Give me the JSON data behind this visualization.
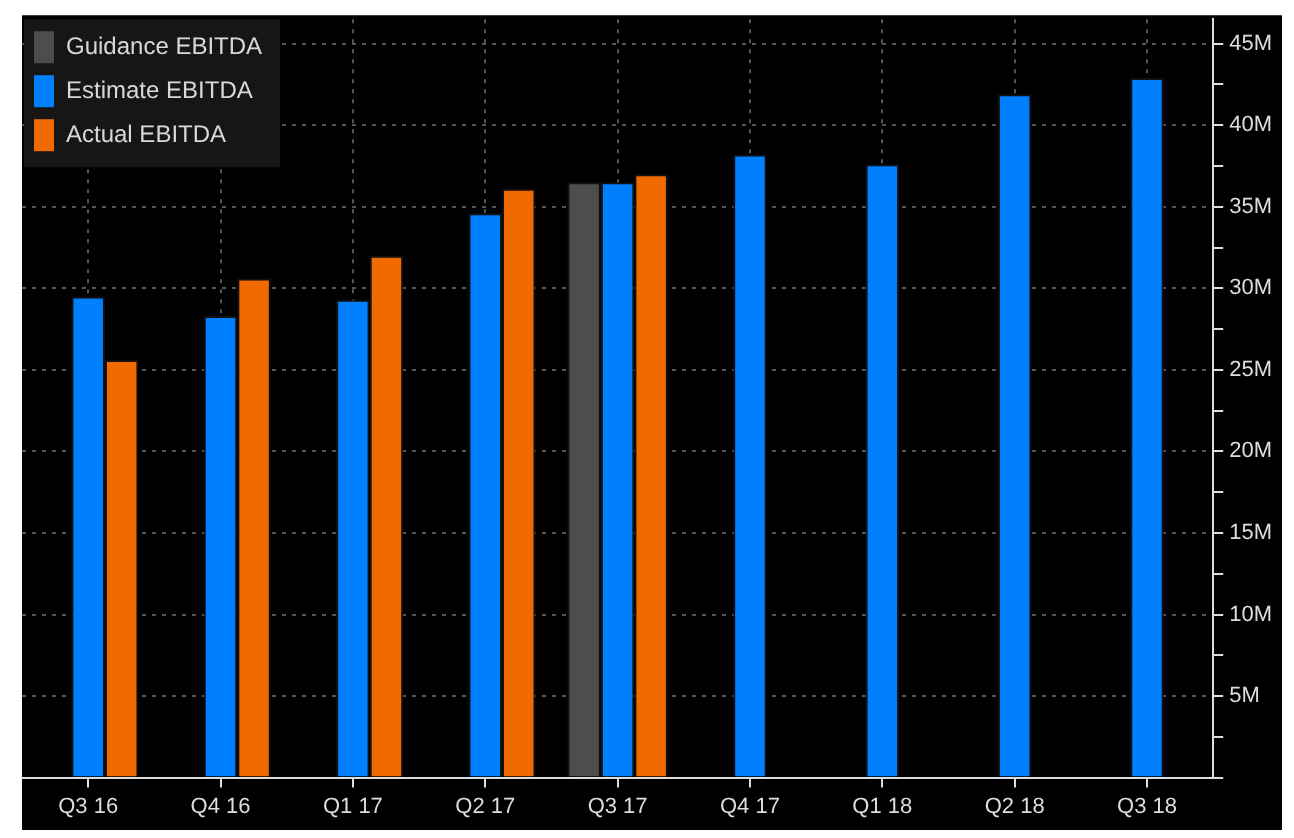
{
  "chart_data": {
    "type": "bar",
    "categories": [
      "Q3 16",
      "Q4 16",
      "Q1 17",
      "Q2 17",
      "Q3 17",
      "Q4 17",
      "Q1 18",
      "Q2 18",
      "Q3 18"
    ],
    "series": [
      {
        "name": "Guidance EBITDA",
        "color": "#4d4d4d",
        "values": [
          null,
          null,
          null,
          null,
          36.5,
          null,
          null,
          null,
          null
        ]
      },
      {
        "name": "Estimate EBITDA",
        "color": "#0080ff",
        "values": [
          29.5,
          28.3,
          29.3,
          34.6,
          36.5,
          38.2,
          37.6,
          41.9,
          42.9
        ]
      },
      {
        "name": "Actual EBITDA",
        "color": "#f06a00",
        "values": [
          25.6,
          30.6,
          32.0,
          36.1,
          37.0,
          null,
          null,
          null,
          null
        ]
      }
    ],
    "ylim": [
      0,
      46.5
    ],
    "yticks": [
      {
        "value": 0,
        "label": null
      },
      {
        "value": 2.5,
        "label": null
      },
      {
        "value": 5,
        "label": "5M"
      },
      {
        "value": 7.5,
        "label": null
      },
      {
        "value": 10,
        "label": "10M"
      },
      {
        "value": 12.5,
        "label": null
      },
      {
        "value": 15,
        "label": "15M"
      },
      {
        "value": 17.5,
        "label": null
      },
      {
        "value": 20,
        "label": "20M"
      },
      {
        "value": 22.5,
        "label": null
      },
      {
        "value": 25,
        "label": "25M"
      },
      {
        "value": 27.5,
        "label": null
      },
      {
        "value": 30,
        "label": "30M"
      },
      {
        "value": 32.5,
        "label": null
      },
      {
        "value": 35,
        "label": "35M"
      },
      {
        "value": 37.5,
        "label": null
      },
      {
        "value": 40,
        "label": "40M"
      },
      {
        "value": 42.5,
        "label": null
      },
      {
        "value": 45,
        "label": "45M"
      }
    ],
    "grid": true,
    "legend": "top left"
  }
}
